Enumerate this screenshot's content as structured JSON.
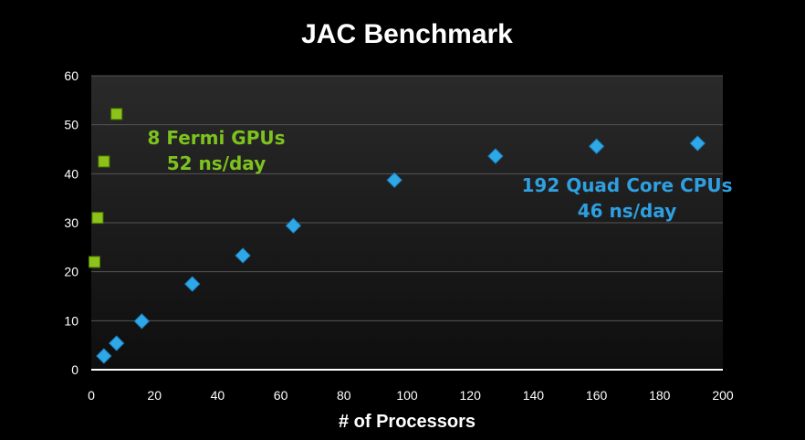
{
  "chart_data": {
    "type": "scatter",
    "title": "JAC Benchmark",
    "xlabel": "# of Processors",
    "ylabel": "",
    "xlim": [
      0,
      200
    ],
    "ylim": [
      0,
      60
    ],
    "xticks": [
      0,
      20,
      40,
      60,
      80,
      100,
      120,
      140,
      160,
      180,
      200
    ],
    "yticks": [
      0,
      10,
      20,
      30,
      40,
      50,
      60
    ],
    "grid": "horizontal",
    "legend": "none",
    "series": [
      {
        "marker": "square",
        "color": "#8cc21a",
        "x": [
          1,
          2,
          4,
          8
        ],
        "y": [
          22,
          31,
          42.5,
          52.2
        ]
      },
      {
        "marker": "diamond",
        "color": "#2fa8e8",
        "x": [
          4,
          8,
          16,
          32,
          48,
          64,
          96,
          128,
          160,
          192
        ],
        "y": [
          2.8,
          5.4,
          9.9,
          17.5,
          23.3,
          29.4,
          38.7,
          43.6,
          45.6,
          46.2
        ]
      }
    ],
    "annotations": [
      {
        "lines": [
          "8  Fermi GPUs",
          "52 ns/day"
        ],
        "color": "#7dc21e"
      },
      {
        "lines": [
          "192 Quad Core CPUs",
          "46 ns/day"
        ],
        "color": "#2e9fe0"
      }
    ]
  }
}
